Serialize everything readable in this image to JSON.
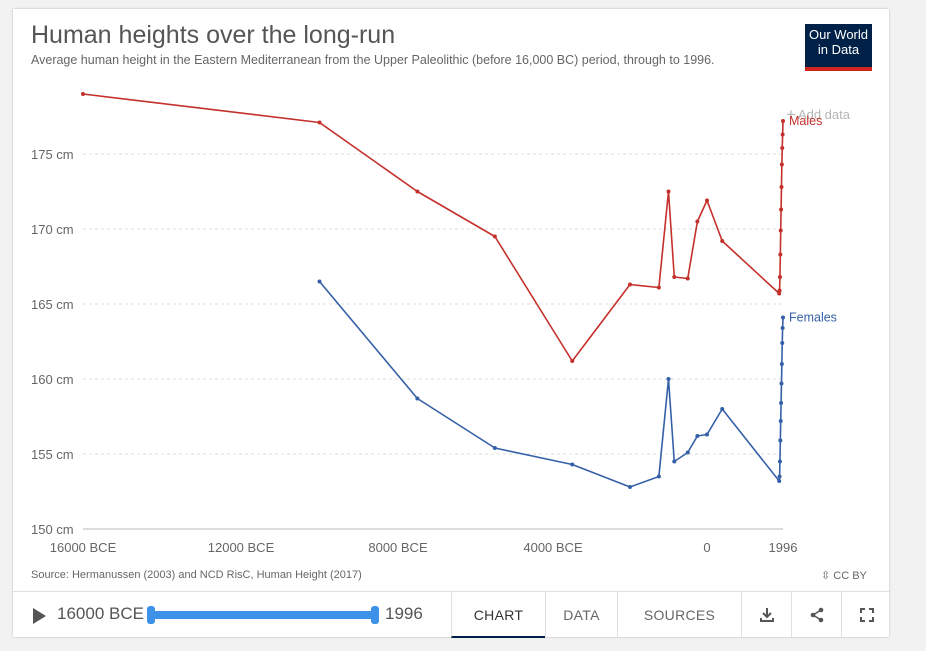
{
  "header": {
    "title": "Human heights over the long-run",
    "subtitle": "Average human height in the Eastern Mediterranean from the Upper Paleolithic (before 16,000 BC) period, through to 1996.",
    "logo_line1": "Our World",
    "logo_line2": "in Data",
    "add_data": "Add data"
  },
  "footer": {
    "source": "Source: Hermanussen (2003) and NCD RisC, Human Height (2017)",
    "license": "CC BY",
    "timeline_start": "16000 BCE",
    "timeline_end": "1996",
    "tabs": [
      "CHART",
      "DATA",
      "SOURCES"
    ],
    "active_tab": "CHART",
    "icons": [
      "download-icon",
      "share-icon",
      "fullscreen-icon"
    ]
  },
  "chart_data": {
    "type": "line",
    "title": "Human heights over the long-run",
    "xlabel": "",
    "ylabel": "",
    "xlim": [
      -16000,
      1996
    ],
    "ylim": [
      150,
      178
    ],
    "x_ticks": [
      -16000,
      -12000,
      -8000,
      -4000,
      0,
      1996
    ],
    "x_tick_labels": [
      "16000 BCE",
      "12000 BCE",
      "8000 BCE",
      "4000 BCE",
      "0",
      "1996"
    ],
    "y_ticks": [
      150,
      155,
      160,
      165,
      170,
      175
    ],
    "y_tick_labels": [
      "150 cm",
      "155 cm",
      "160 cm",
      "165 cm",
      "170 cm",
      "175 cm"
    ],
    "grid": "horizontal dashed",
    "legend": "line-end labels",
    "series": [
      {
        "name": "Males",
        "color": "#c4302b",
        "x": [
          -16000,
          -10000,
          -7500,
          -5500,
          -3500,
          -2000,
          -1250,
          -1000,
          -850,
          -500,
          -250,
          0,
          400,
          1896,
          1906,
          1916,
          1926,
          1936,
          1946,
          1956,
          1966,
          1976,
          1986,
          1996
        ],
        "y": [
          179.0,
          177.1,
          172.5,
          169.5,
          161.2,
          166.3,
          166.1,
          172.5,
          166.8,
          166.7,
          170.5,
          171.9,
          169.2,
          165.7,
          165.9,
          166.8,
          168.3,
          169.9,
          171.3,
          172.8,
          174.3,
          175.4,
          176.3,
          177.2
        ]
      },
      {
        "name": "Females",
        "color": "#3560a7",
        "x": [
          -10000,
          -7500,
          -5500,
          -3500,
          -2000,
          -1250,
          -1000,
          -850,
          -500,
          -250,
          0,
          400,
          1896,
          1906,
          1916,
          1926,
          1936,
          1946,
          1956,
          1966,
          1976,
          1986,
          1996
        ],
        "y": [
          166.5,
          158.7,
          155.4,
          154.3,
          152.8,
          153.5,
          160.0,
          154.5,
          155.1,
          156.2,
          156.3,
          158.0,
          153.2,
          153.5,
          154.5,
          155.9,
          157.2,
          158.4,
          159.7,
          161.0,
          162.4,
          163.4,
          164.1
        ]
      }
    ]
  }
}
